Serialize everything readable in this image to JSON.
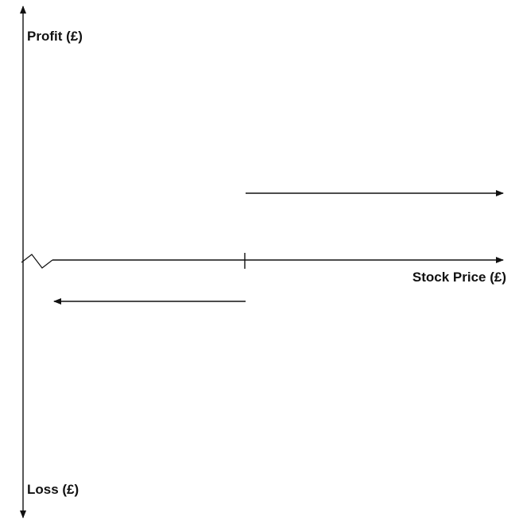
{
  "labels": {
    "profit_axis": "Profit (£)",
    "loss_axis": "Loss (£)",
    "stock_price_axis": "Stock Price (£)"
  },
  "colors": {
    "line": "#111111",
    "background": "#ffffff"
  }
}
